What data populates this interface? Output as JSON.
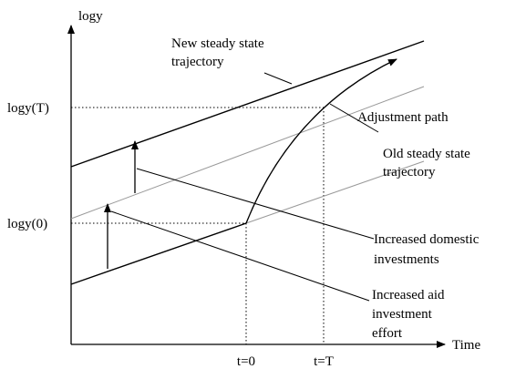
{
  "axes": {
    "y_label": "logy",
    "x_label": "Time",
    "y_ticks": [
      "logy(T)",
      "logy(0)"
    ],
    "x_ticks": [
      "t=0",
      "t=T"
    ]
  },
  "labels": {
    "new_trajectory": [
      "New steady state",
      "trajectory"
    ],
    "adjustment": "Adjustment path",
    "old_trajectory": [
      "Old steady state",
      "trajectory"
    ],
    "domestic": [
      "Increased domestic",
      "investments"
    ],
    "aid": [
      "Increased aid",
      "investment",
      "effort"
    ]
  }
}
